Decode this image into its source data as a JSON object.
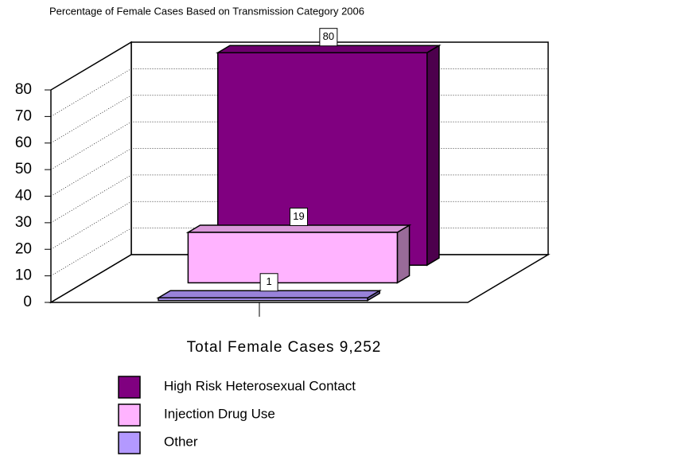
{
  "chart_data": {
    "type": "bar3d",
    "title": "Percentage of Female Cases Based on Transmission Category 2006",
    "x_label": "Total Female Cases 9,252",
    "series": [
      {
        "name": "High Risk Heterosexual Contact",
        "color": "#800080",
        "values": [
          80
        ]
      },
      {
        "name": "Injection Drug Use",
        "color": "#ffb3ff",
        "values": [
          19
        ]
      },
      {
        "name": "Other",
        "color": "#b399ff",
        "values": [
          1
        ]
      }
    ],
    "ylim": [
      0,
      80
    ],
    "yticks": [
      0,
      10,
      20,
      30,
      40,
      50,
      60,
      70,
      80
    ],
    "grid": true
  }
}
